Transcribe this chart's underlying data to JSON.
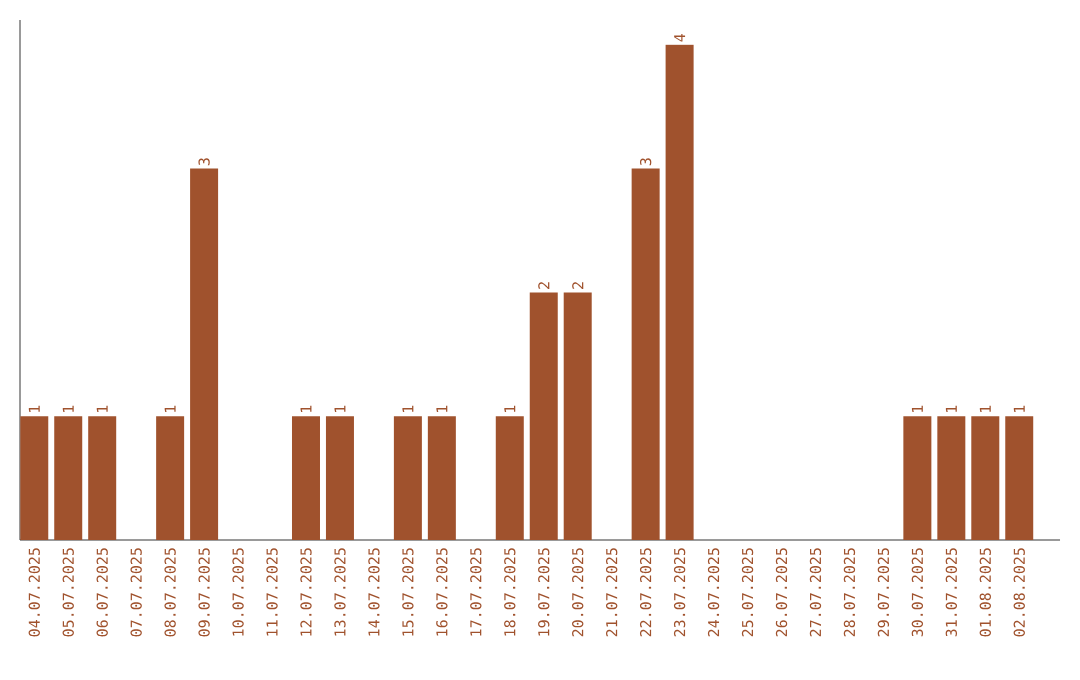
{
  "chart_data": {
    "type": "bar",
    "categories": [
      "04.07.2025",
      "05.07.2025",
      "06.07.2025",
      "07.07.2025",
      "08.07.2025",
      "09.07.2025",
      "10.07.2025",
      "11.07.2025",
      "12.07.2025",
      "13.07.2025",
      "14.07.2025",
      "15.07.2025",
      "16.07.2025",
      "17.07.2025",
      "18.07.2025",
      "19.07.2025",
      "20.07.2025",
      "21.07.2025",
      "22.07.2025",
      "23.07.2025",
      "24.07.2025",
      "25.07.2025",
      "26.07.2025",
      "27.07.2025",
      "28.07.2025",
      "29.07.2025",
      "30.07.2025",
      "31.07.2025",
      "01.08.2025",
      "02.08.2025"
    ],
    "values": [
      1,
      1,
      1,
      0,
      1,
      3,
      0,
      0,
      1,
      1,
      0,
      1,
      1,
      0,
      1,
      2,
      2,
      0,
      3,
      4,
      0,
      0,
      0,
      0,
      0,
      0,
      1,
      1,
      1,
      1
    ],
    "value_labels": [
      "1",
      "1",
      "1",
      null,
      "1",
      "3",
      null,
      null,
      "1",
      "1",
      null,
      "1",
      "1",
      null,
      "1",
      "2",
      "2",
      null,
      "3",
      "4",
      null,
      null,
      null,
      null,
      null,
      null,
      "1",
      "1",
      "1",
      "1"
    ],
    "color": "#a0522d",
    "ylim": [
      0,
      4.2
    ],
    "tick_labels": "x"
  }
}
